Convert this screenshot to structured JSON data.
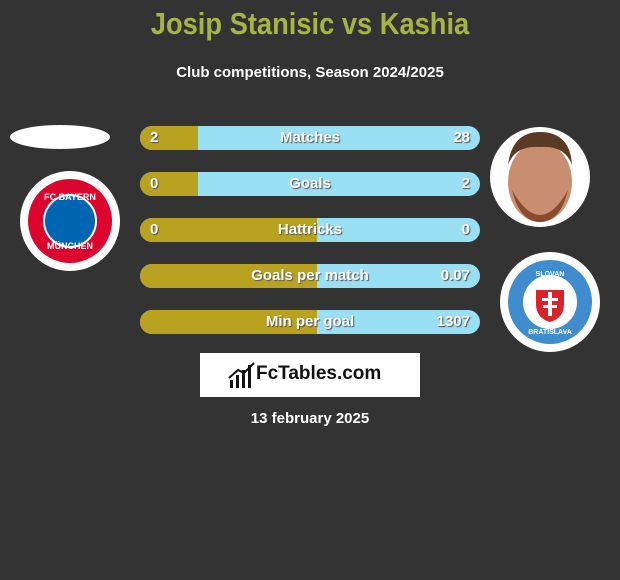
{
  "header": {
    "title": "Josip Stanisic vs Kashia",
    "subtitle": "Club competitions, Season 2024/2025"
  },
  "logos": {
    "left_club_top": "FC BAYERN",
    "left_club_bottom": "MÜNCHEN",
    "right_club_top": "SLOVAN",
    "right_club_bottom": "BRATISLAVA"
  },
  "rows": [
    {
      "label": "Matches",
      "left": 2,
      "right": 28
    },
    {
      "label": "Goals",
      "left": 0,
      "right": 2
    },
    {
      "label": "Hattricks",
      "left": 0,
      "right": 0
    },
    {
      "label": "Goals per match",
      "right": 0.07
    },
    {
      "label": "Min per goal",
      "right": 1307
    }
  ],
  "brand": "FcTables.com",
  "date": "13 february 2025"
}
